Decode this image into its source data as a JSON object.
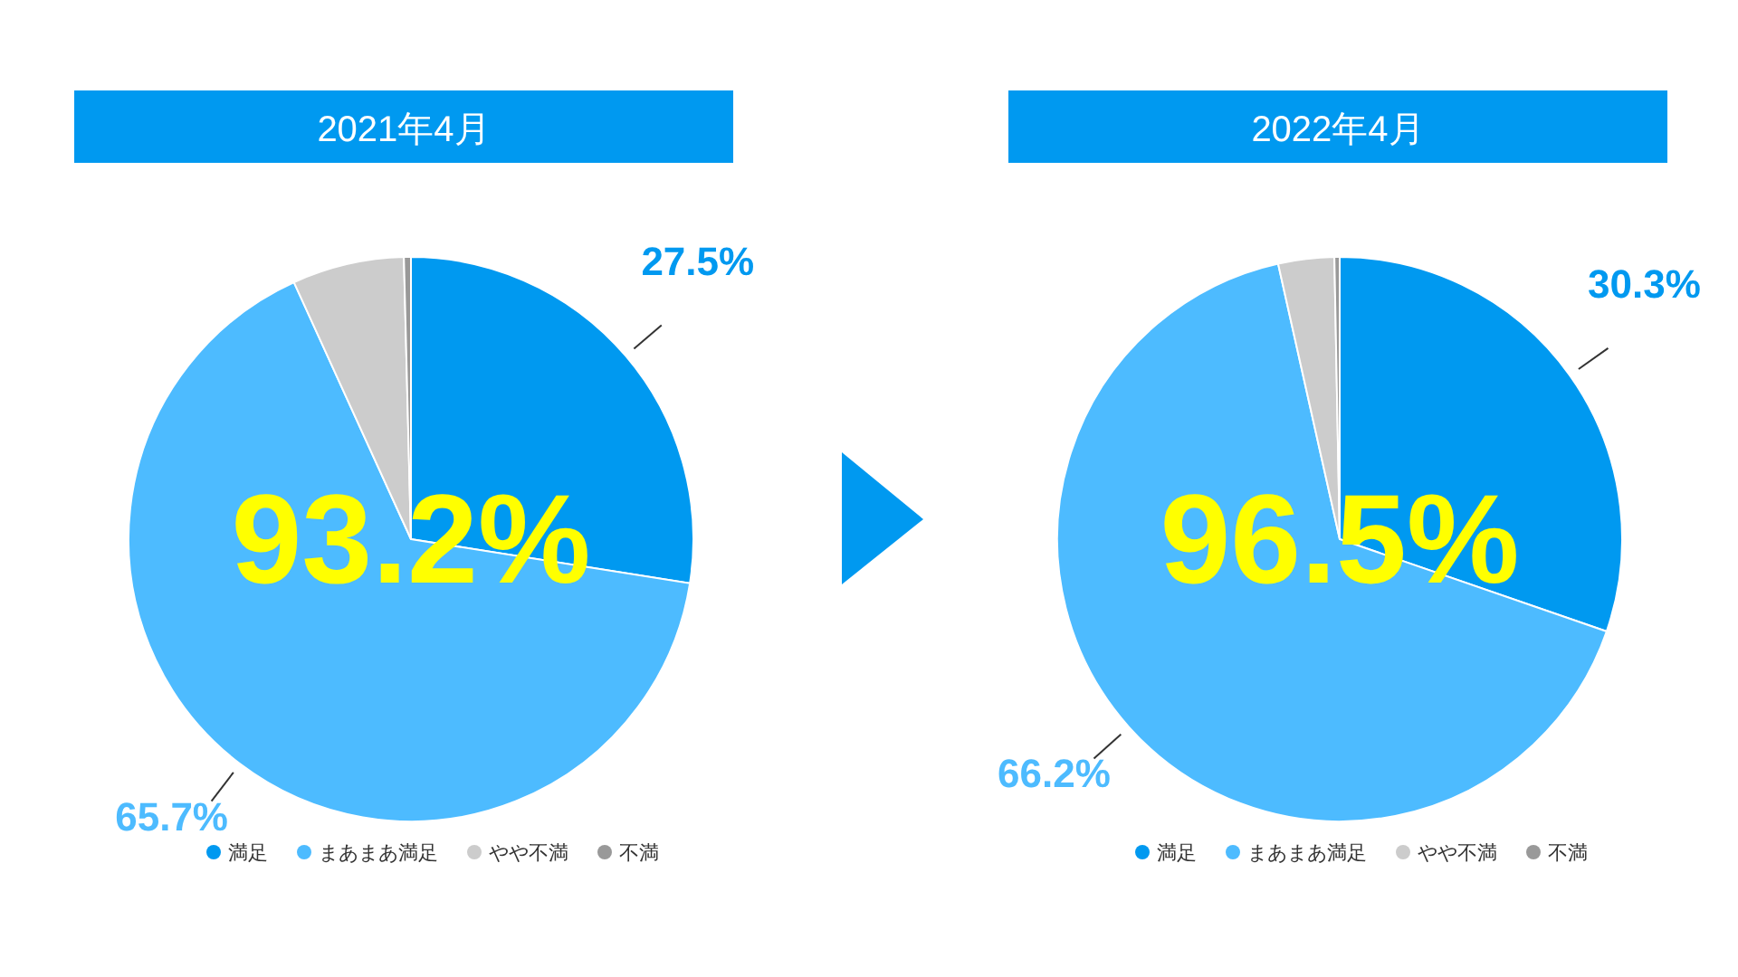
{
  "chart_data": [
    {
      "type": "pie",
      "title": "2021年4月",
      "categories": [
        "満足",
        "まあまあ満足",
        "やや不満",
        "不満"
      ],
      "values": [
        27.5,
        65.7,
        6.4,
        0.4
      ],
      "colors": [
        "#0099f0",
        "#4dbbff",
        "#cccccc",
        "#999999"
      ],
      "value_labels": [
        "27.5%",
        "65.7%",
        null,
        null
      ],
      "annotations": [
        "93.2%"
      ],
      "legend": "bottom"
    },
    {
      "type": "pie",
      "title": "2022年4月",
      "categories": [
        "満足",
        "まあまあ満足",
        "やや不満",
        "不満"
      ],
      "values": [
        30.3,
        66.2,
        3.2,
        0.3
      ],
      "colors": [
        "#0099f0",
        "#4dbbff",
        "#cccccc",
        "#999999"
      ],
      "value_labels": [
        "30.3%",
        "66.2%",
        null,
        null
      ],
      "annotations": [
        "96.5%"
      ],
      "legend": "bottom"
    }
  ]
}
